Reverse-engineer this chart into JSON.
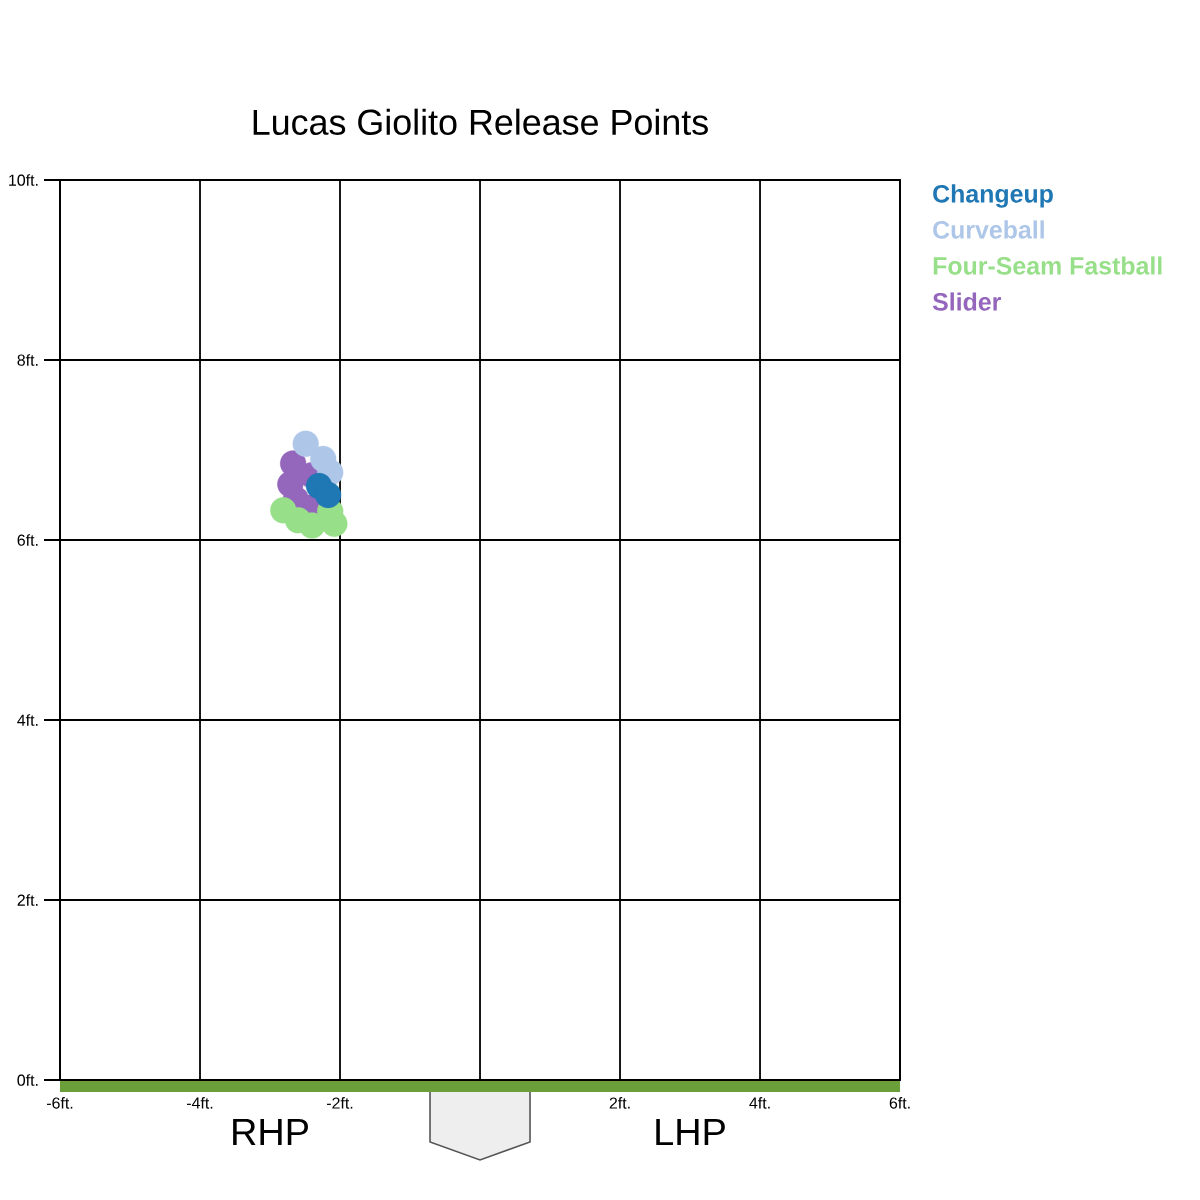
{
  "chart_data": {
    "type": "scatter",
    "title": "Lucas Giolito Release Points",
    "annotations": [
      "RHP",
      "LHP"
    ],
    "series": [
      {
        "name": "Changeup",
        "color": "#1f77b4",
        "x": [
          -2.3,
          -2.17
        ],
        "values": [
          6.6,
          6.5
        ]
      },
      {
        "name": "Curveball",
        "color": "#aec7e8",
        "x": [
          -2.49,
          -2.24,
          -2.14
        ],
        "values": [
          7.07,
          6.9,
          6.75
        ]
      },
      {
        "name": "Four-Seam Fastball",
        "color": "#98df8a",
        "x": [
          -2.81,
          -2.6,
          -2.4,
          -2.08,
          -2.14
        ],
        "values": [
          6.33,
          6.22,
          6.16,
          6.18,
          6.32
        ]
      },
      {
        "name": "Slider",
        "color": "#9467bd",
        "x": [
          -2.67,
          -2.71,
          -2.4,
          -2.63,
          -2.4
        ],
        "values": [
          6.85,
          6.62,
          6.72,
          6.45,
          6.36
        ]
      }
    ],
    "xlim": [
      -6,
      6
    ],
    "ylim": [
      0,
      10
    ],
    "xticks": [
      {
        "value": -6,
        "label": "-6ft."
      },
      {
        "value": -4,
        "label": "-4ft."
      },
      {
        "value": -2,
        "label": "-2ft."
      },
      {
        "value": 0,
        "label": null
      },
      {
        "value": 2,
        "label": "2ft."
      },
      {
        "value": 4,
        "label": "4ft."
      },
      {
        "value": 6,
        "label": "6ft."
      }
    ],
    "yticks": [
      {
        "value": 0,
        "label": "0ft."
      },
      {
        "value": 2,
        "label": "2ft."
      },
      {
        "value": 4,
        "label": "4ft."
      },
      {
        "value": 6,
        "label": "6ft."
      },
      {
        "value": 8,
        "label": "8ft."
      },
      {
        "value": 10,
        "label": "10ft."
      }
    ],
    "grid": true,
    "legend": "top right",
    "marker": "circle"
  }
}
